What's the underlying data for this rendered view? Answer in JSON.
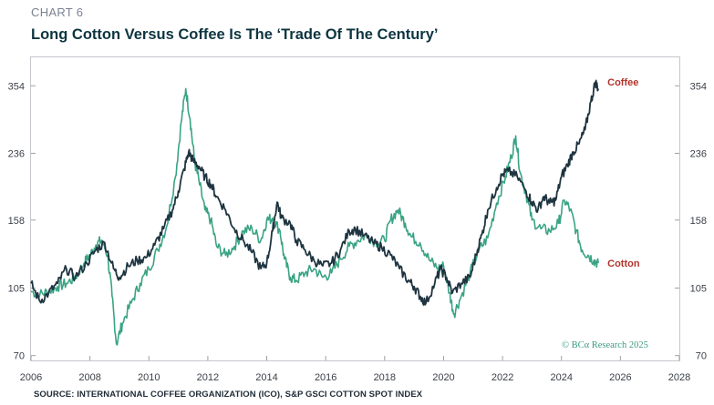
{
  "header": {
    "label": "CHART 6",
    "title": "Long Cotton Versus Coffee Is The ‘Trade Of The Century’"
  },
  "footer": {
    "source": "SOURCE: INTERNATIONAL COFFEE ORGANIZATION (ICO), S&P GSCI COTTON SPOT INDEX",
    "watermark": "© BCα Research 2025"
  },
  "colors": {
    "coffee": "#1e3440",
    "cotton": "#3aa384",
    "label_text": "#b0332b"
  },
  "chart_data": {
    "type": "line",
    "title": "Long Cotton Versus Coffee Is The ‘Trade Of The Century’",
    "xlabel": "",
    "ylabel": "",
    "y_scale": "log",
    "xlim": [
      2006,
      2028
    ],
    "ylim": [
      68,
      420
    ],
    "x_ticks": [
      "2006",
      "2008",
      "2010",
      "2012",
      "2014",
      "2016",
      "2018",
      "2020",
      "2022",
      "2024",
      "2026",
      "2028"
    ],
    "y_ticks": [
      70,
      105,
      158,
      236,
      354
    ],
    "legend": "inline labels at right end of each series",
    "series": [
      {
        "name": "Coffee",
        "color": "#1e3440",
        "points": [
          [
            2006.0,
            108
          ],
          [
            2006.3,
            97
          ],
          [
            2006.6,
            102
          ],
          [
            2006.9,
            108
          ],
          [
            2007.2,
            118
          ],
          [
            2007.5,
            112
          ],
          [
            2007.9,
            122
          ],
          [
            2008.2,
            132
          ],
          [
            2008.5,
            138
          ],
          [
            2008.8,
            118
          ],
          [
            2009.0,
            112
          ],
          [
            2009.3,
            120
          ],
          [
            2009.6,
            124
          ],
          [
            2009.9,
            126
          ],
          [
            2010.2,
            136
          ],
          [
            2010.5,
            150
          ],
          [
            2010.8,
            168
          ],
          [
            2011.0,
            188
          ],
          [
            2011.2,
            215
          ],
          [
            2011.35,
            238
          ],
          [
            2011.5,
            226
          ],
          [
            2011.7,
            218
          ],
          [
            2011.9,
            205
          ],
          [
            2012.1,
            196
          ],
          [
            2012.3,
            182
          ],
          [
            2012.6,
            168
          ],
          [
            2012.9,
            150
          ],
          [
            2013.2,
            140
          ],
          [
            2013.5,
            130
          ],
          [
            2013.8,
            118
          ],
          [
            2014.0,
            122
          ],
          [
            2014.2,
            148
          ],
          [
            2014.35,
            176
          ],
          [
            2014.5,
            160
          ],
          [
            2014.8,
            155
          ],
          [
            2015.0,
            140
          ],
          [
            2015.3,
            132
          ],
          [
            2015.6,
            124
          ],
          [
            2015.9,
            120
          ],
          [
            2016.2,
            122
          ],
          [
            2016.5,
            132
          ],
          [
            2016.8,
            148
          ],
          [
            2017.0,
            150
          ],
          [
            2017.3,
            144
          ],
          [
            2017.6,
            138
          ],
          [
            2017.9,
            134
          ],
          [
            2018.2,
            128
          ],
          [
            2018.5,
            118
          ],
          [
            2018.8,
            110
          ],
          [
            2019.0,
            106
          ],
          [
            2019.2,
            100
          ],
          [
            2019.4,
            96
          ],
          [
            2019.7,
            108
          ],
          [
            2019.9,
            118
          ],
          [
            2020.1,
            112
          ],
          [
            2020.3,
            102
          ],
          [
            2020.6,
            108
          ],
          [
            2020.9,
            112
          ],
          [
            2021.1,
            128
          ],
          [
            2021.3,
            145
          ],
          [
            2021.5,
            168
          ],
          [
            2021.8,
            192
          ],
          [
            2022.0,
            208
          ],
          [
            2022.2,
            212
          ],
          [
            2022.5,
            205
          ],
          [
            2022.8,
            188
          ],
          [
            2023.0,
            176
          ],
          [
            2023.2,
            168
          ],
          [
            2023.4,
            182
          ],
          [
            2023.6,
            175
          ],
          [
            2023.8,
            178
          ],
          [
            2024.0,
            205
          ],
          [
            2024.2,
            220
          ],
          [
            2024.4,
            238
          ],
          [
            2024.6,
            250
          ],
          [
            2024.8,
            272
          ],
          [
            2025.0,
            322
          ],
          [
            2025.15,
            362
          ],
          [
            2025.25,
            348
          ]
        ]
      },
      {
        "name": "Cotton",
        "color": "#3aa384",
        "points": [
          [
            2006.0,
            103
          ],
          [
            2006.3,
            101
          ],
          [
            2006.6,
            103
          ],
          [
            2006.9,
            106
          ],
          [
            2007.2,
            108
          ],
          [
            2007.5,
            112
          ],
          [
            2007.8,
            122
          ],
          [
            2008.0,
            128
          ],
          [
            2008.2,
            136
          ],
          [
            2008.4,
            140
          ],
          [
            2008.6,
            128
          ],
          [
            2008.75,
            100
          ],
          [
            2008.9,
            75
          ],
          [
            2009.1,
            85
          ],
          [
            2009.4,
            96
          ],
          [
            2009.7,
            108
          ],
          [
            2010.0,
            118
          ],
          [
            2010.3,
            132
          ],
          [
            2010.6,
            152
          ],
          [
            2010.9,
            205
          ],
          [
            2011.1,
            285
          ],
          [
            2011.25,
            348
          ],
          [
            2011.4,
            290
          ],
          [
            2011.55,
            225
          ],
          [
            2011.7,
            200
          ],
          [
            2011.9,
            168
          ],
          [
            2012.1,
            158
          ],
          [
            2012.3,
            135
          ],
          [
            2012.6,
            128
          ],
          [
            2012.9,
            135
          ],
          [
            2013.2,
            148
          ],
          [
            2013.5,
            150
          ],
          [
            2013.8,
            140
          ],
          [
            2014.0,
            158
          ],
          [
            2014.2,
            160
          ],
          [
            2014.45,
            148
          ],
          [
            2014.6,
            125
          ],
          [
            2014.8,
            112
          ],
          [
            2015.0,
            110
          ],
          [
            2015.3,
            115
          ],
          [
            2015.6,
            118
          ],
          [
            2015.9,
            112
          ],
          [
            2016.2,
            115
          ],
          [
            2016.5,
            125
          ],
          [
            2016.8,
            135
          ],
          [
            2017.1,
            140
          ],
          [
            2017.4,
            145
          ],
          [
            2017.7,
            138
          ],
          [
            2018.0,
            140
          ],
          [
            2018.2,
            158
          ],
          [
            2018.45,
            168
          ],
          [
            2018.7,
            155
          ],
          [
            2018.9,
            143
          ],
          [
            2019.2,
            138
          ],
          [
            2019.5,
            125
          ],
          [
            2019.8,
            118
          ],
          [
            2020.0,
            120
          ],
          [
            2020.2,
            102
          ],
          [
            2020.35,
            90
          ],
          [
            2020.6,
            100
          ],
          [
            2020.9,
            115
          ],
          [
            2021.2,
            132
          ],
          [
            2021.5,
            142
          ],
          [
            2021.8,
            175
          ],
          [
            2022.1,
            205
          ],
          [
            2022.3,
            232
          ],
          [
            2022.45,
            262
          ],
          [
            2022.6,
            210
          ],
          [
            2022.8,
            185
          ],
          [
            2023.0,
            158
          ],
          [
            2023.3,
            150
          ],
          [
            2023.6,
            148
          ],
          [
            2023.9,
            155
          ],
          [
            2024.1,
            178
          ],
          [
            2024.3,
            168
          ],
          [
            2024.5,
            148
          ],
          [
            2024.7,
            132
          ],
          [
            2024.9,
            128
          ],
          [
            2025.1,
            124
          ],
          [
            2025.25,
            122
          ]
        ]
      }
    ],
    "labels": {
      "coffee": "Coffee",
      "cotton": "Cotton"
    }
  }
}
